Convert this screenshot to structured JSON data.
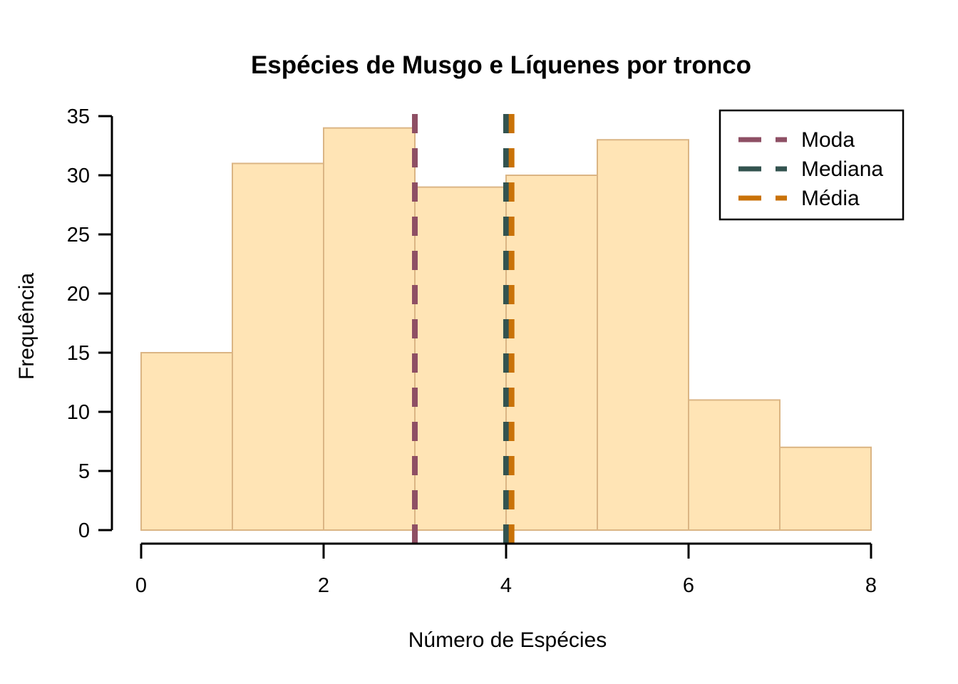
{
  "chart_data": {
    "type": "bar",
    "subtype": "histogram",
    "title": "Espécies de Musgo e Líquenes por tronco",
    "xlabel": "Número de Espécies",
    "ylabel": "Frequência",
    "bin_edges": [
      0,
      1,
      2,
      3,
      4,
      5,
      6,
      7,
      8
    ],
    "values": [
      15,
      31,
      34,
      29,
      30,
      33,
      11,
      7
    ],
    "xlim": [
      0,
      8
    ],
    "ylim": [
      0,
      35
    ],
    "x_ticks": [
      0,
      2,
      4,
      6,
      8
    ],
    "y_ticks": [
      0,
      5,
      10,
      15,
      20,
      25,
      30,
      35
    ],
    "grid": false,
    "background": "#FFFFFF",
    "bar_fill": "#FFE4B5",
    "bar_border": "#DBB584",
    "axis_color": "#000000",
    "legend": {
      "position": "top-right",
      "line_style": "dashed"
    },
    "reference_lines": [
      {
        "name": "Moda",
        "x": 3,
        "color": "#8E4F64",
        "style": "dashed"
      },
      {
        "name": "Mediana",
        "x": 4,
        "color": "#33534F",
        "style": "dashed"
      },
      {
        "name": "Média",
        "x": 4.06,
        "color": "#C97208",
        "style": "dashed"
      }
    ]
  }
}
